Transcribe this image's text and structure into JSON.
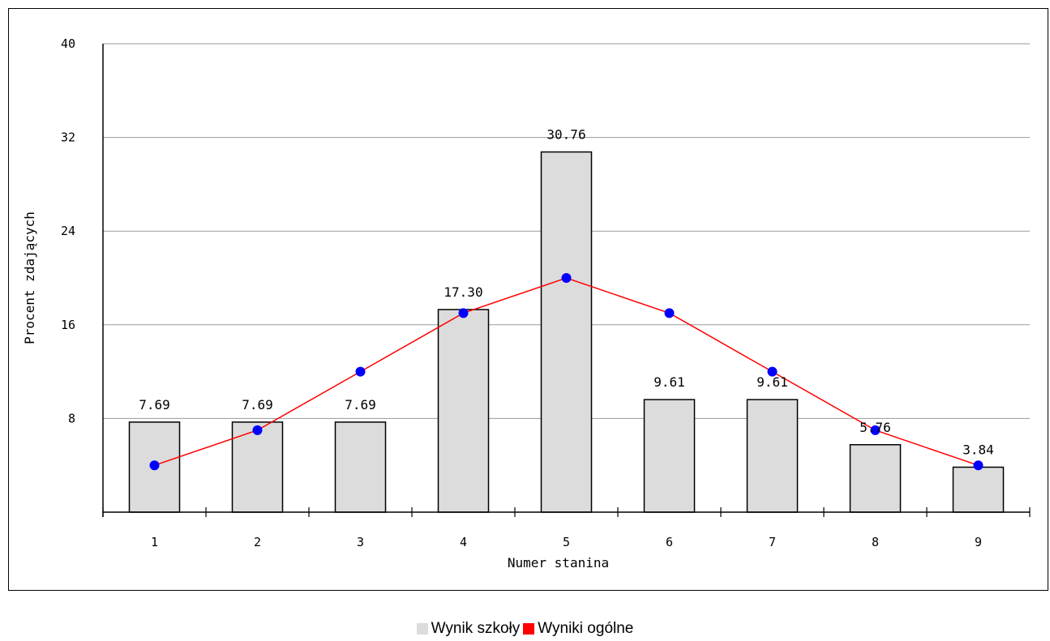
{
  "chart_data": {
    "type": "bar",
    "categories": [
      "1",
      "2",
      "3",
      "4",
      "5",
      "6",
      "7",
      "8",
      "9"
    ],
    "series": [
      {
        "name": "Wynik szkoły",
        "kind": "bar",
        "color": "#dcdcdc",
        "values": [
          7.69,
          7.69,
          7.69,
          17.3,
          30.76,
          9.61,
          9.61,
          5.76,
          3.84
        ],
        "labels": [
          "7.69",
          "7.69",
          "7.69",
          "17.30",
          "30.76",
          "9.61",
          "9.61",
          "5.76",
          "3.84"
        ]
      },
      {
        "name": "Wyniki ogólne",
        "kind": "line",
        "color": "#ff0000",
        "marker_color": "#0000ff",
        "values": [
          4,
          7,
          12,
          17,
          20,
          17,
          12,
          7,
          4
        ]
      }
    ],
    "xlabel": "Numer stanina",
    "ylabel": "Procent zdających",
    "ylim": [
      0,
      40
    ],
    "yticks": [
      "8",
      "16",
      "24",
      "32",
      "40"
    ],
    "grid": true,
    "legend_position": "bottom-center"
  }
}
